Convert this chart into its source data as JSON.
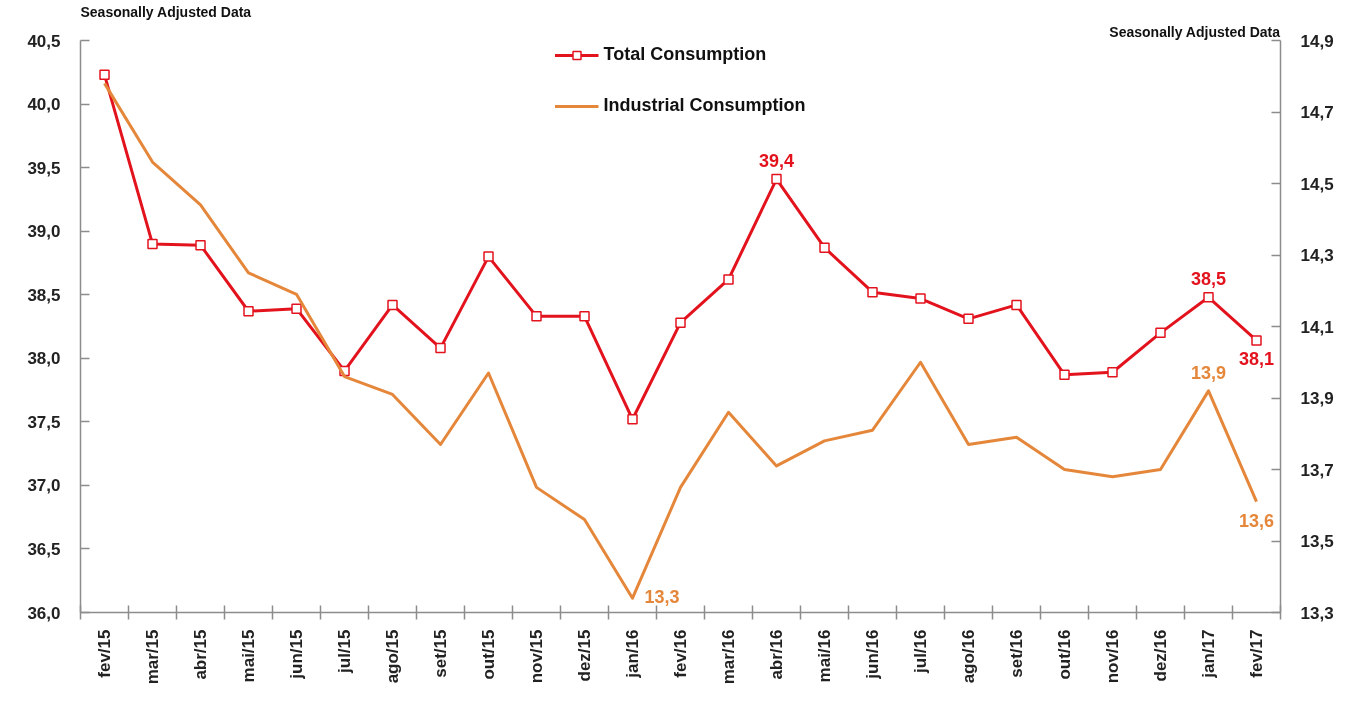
{
  "chart_data": {
    "type": "line",
    "ylabel": "Seasonally Adjusted Data",
    "y2label": "Seasonally Adjusted Data",
    "categories": [
      "fev/15",
      "mar/15",
      "abr/15",
      "mai/15",
      "jun/15",
      "jul/15",
      "ago/15",
      "set/15",
      "out/15",
      "nov/15",
      "dez/15",
      "jan/16",
      "fev/16",
      "mar/16",
      "abr/16",
      "mai/16",
      "jun/16",
      "jul/16",
      "ago/16",
      "set/16",
      "out/16",
      "nov/16",
      "dez/16",
      "jan/17",
      "fev/17"
    ],
    "ylim": [
      36.0,
      40.5
    ],
    "yticks": [
      {
        "value": 36.0,
        "label": "36,0"
      },
      {
        "value": 36.5,
        "label": "36,5"
      },
      {
        "value": 37.0,
        "label": "37,0"
      },
      {
        "value": 37.5,
        "label": "37,5"
      },
      {
        "value": 38.0,
        "label": "38,0"
      },
      {
        "value": 38.5,
        "label": "38,5"
      },
      {
        "value": 39.0,
        "label": "39,0"
      },
      {
        "value": 39.5,
        "label": "39,5"
      },
      {
        "value": 40.0,
        "label": "40,0"
      },
      {
        "value": 40.5,
        "label": "40,5"
      }
    ],
    "y2lim": [
      13.3,
      14.9
    ],
    "y2ticks": [
      {
        "value": 13.3,
        "label": "13,3"
      },
      {
        "value": 13.5,
        "label": "13,5"
      },
      {
        "value": 13.7,
        "label": "13,7"
      },
      {
        "value": 13.9,
        "label": "13,9"
      },
      {
        "value": 14.1,
        "label": "14,1"
      },
      {
        "value": 14.3,
        "label": "14,3"
      },
      {
        "value": 14.5,
        "label": "14,5"
      },
      {
        "value": 14.7,
        "label": "14,7"
      },
      {
        "value": 14.9,
        "label": "14,9"
      }
    ],
    "legend": "top",
    "series": [
      {
        "name": "Total Consumption",
        "color": "#e3131e",
        "marker": "square",
        "axis": "y",
        "values": [
          40.23,
          38.9,
          38.89,
          38.37,
          38.39,
          37.9,
          38.42,
          38.08,
          38.8,
          38.33,
          38.33,
          37.52,
          38.28,
          38.62,
          39.41,
          38.87,
          38.52,
          38.47,
          38.31,
          38.42,
          37.87,
          37.89,
          38.2,
          38.48,
          38.14
        ],
        "value_labels": [
          null,
          null,
          null,
          null,
          null,
          null,
          null,
          null,
          null,
          null,
          null,
          null,
          null,
          null,
          "39,4",
          null,
          null,
          null,
          null,
          null,
          null,
          null,
          null,
          "38,5",
          "38,1"
        ]
      },
      {
        "name": "Industrial Consumption",
        "color": "#e5873a",
        "marker": "none",
        "axis": "y2",
        "values": [
          14.78,
          14.56,
          14.44,
          14.25,
          14.19,
          13.96,
          13.91,
          13.77,
          13.97,
          13.65,
          13.56,
          13.34,
          13.65,
          13.86,
          13.71,
          13.78,
          13.81,
          14.0,
          13.77,
          13.79,
          13.7,
          13.68,
          13.7,
          13.92,
          13.61
        ],
        "value_labels": [
          null,
          null,
          null,
          null,
          null,
          null,
          null,
          null,
          null,
          null,
          null,
          "13,3",
          null,
          null,
          null,
          null,
          null,
          null,
          null,
          null,
          null,
          null,
          null,
          "13,9",
          "13,6"
        ]
      }
    ]
  }
}
